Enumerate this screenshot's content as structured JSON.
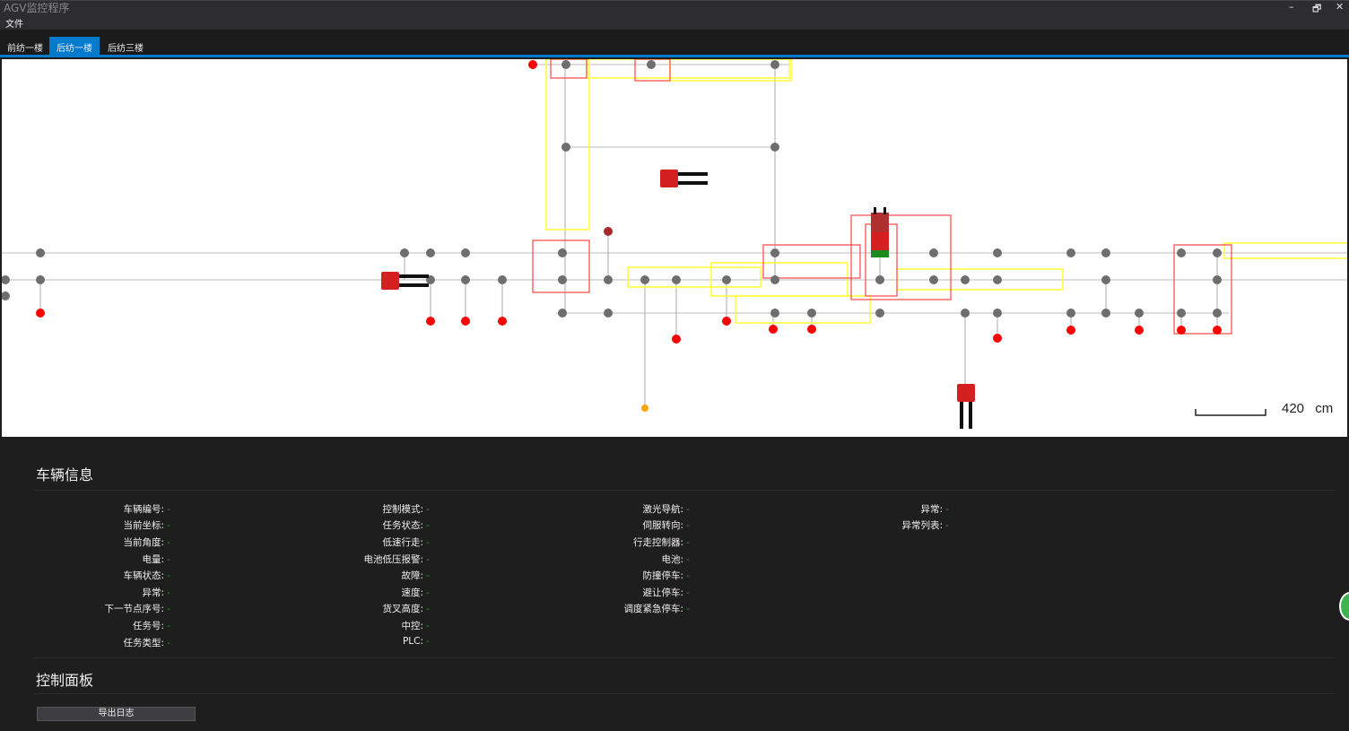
{
  "window": {
    "title": "AGV监控程序",
    "minimize": "–",
    "restore": "🗗",
    "close": "✕"
  },
  "menu": {
    "file": "文件"
  },
  "tabs": [
    {
      "label": "前纺一楼",
      "active": false
    },
    {
      "label": "后纺一楼",
      "active": true
    },
    {
      "label": "后纺三楼",
      "active": false
    }
  ],
  "map": {
    "scale_label": "420 cm",
    "colors": {
      "node_idle": "#6e6e6e",
      "node_station": "#ff0000",
      "node_dark": "#a52a2a",
      "node_orange": "#ffa500",
      "zone_red": "#ff4444",
      "zone_yellow": "#ffff33",
      "agv": "#d42020"
    }
  },
  "vehicle_info": {
    "title": "车辆信息",
    "columns": [
      [
        {
          "label": "车辆编号:",
          "value": "-"
        },
        {
          "label": "当前坐标:",
          "value": "-"
        },
        {
          "label": "当前角度:",
          "value": "-"
        },
        {
          "label": "电量:",
          "value": "-"
        },
        {
          "label": "车辆状态:",
          "value": "-"
        },
        {
          "label": "异常:",
          "value": "-"
        },
        {
          "label": "下一节点序号:",
          "value": "-"
        },
        {
          "label": "任务号:",
          "value": "-"
        },
        {
          "label": "任务类型:",
          "value": "-"
        }
      ],
      [
        {
          "label": "控制模式:",
          "value": "-"
        },
        {
          "label": "任务状态:",
          "value": "-"
        },
        {
          "label": "低速行走:",
          "value": "-"
        },
        {
          "label": "电池低压报警:",
          "value": "-"
        },
        {
          "label": "故障:",
          "value": "-"
        },
        {
          "label": "速度:",
          "value": "-"
        },
        {
          "label": "货叉高度:",
          "value": "-"
        },
        {
          "label": "中控:",
          "value": "-"
        },
        {
          "label": "PLC:",
          "value": "-"
        }
      ],
      [
        {
          "label": "激光导航:",
          "value": "-"
        },
        {
          "label": "伺服转向:",
          "value": "-"
        },
        {
          "label": "行走控制器:",
          "value": "-"
        },
        {
          "label": "电池:",
          "value": "-"
        },
        {
          "label": "防撞停车:",
          "value": "-"
        },
        {
          "label": "避让停车:",
          "value": "-"
        },
        {
          "label": "调度紧急停车:",
          "value": "-"
        }
      ],
      [
        {
          "label": "异常:",
          "value": "-"
        },
        {
          "label": "异常列表:",
          "value": "-"
        }
      ]
    ]
  },
  "control_panel": {
    "title": "控制面板",
    "export_log": "导出日志"
  }
}
